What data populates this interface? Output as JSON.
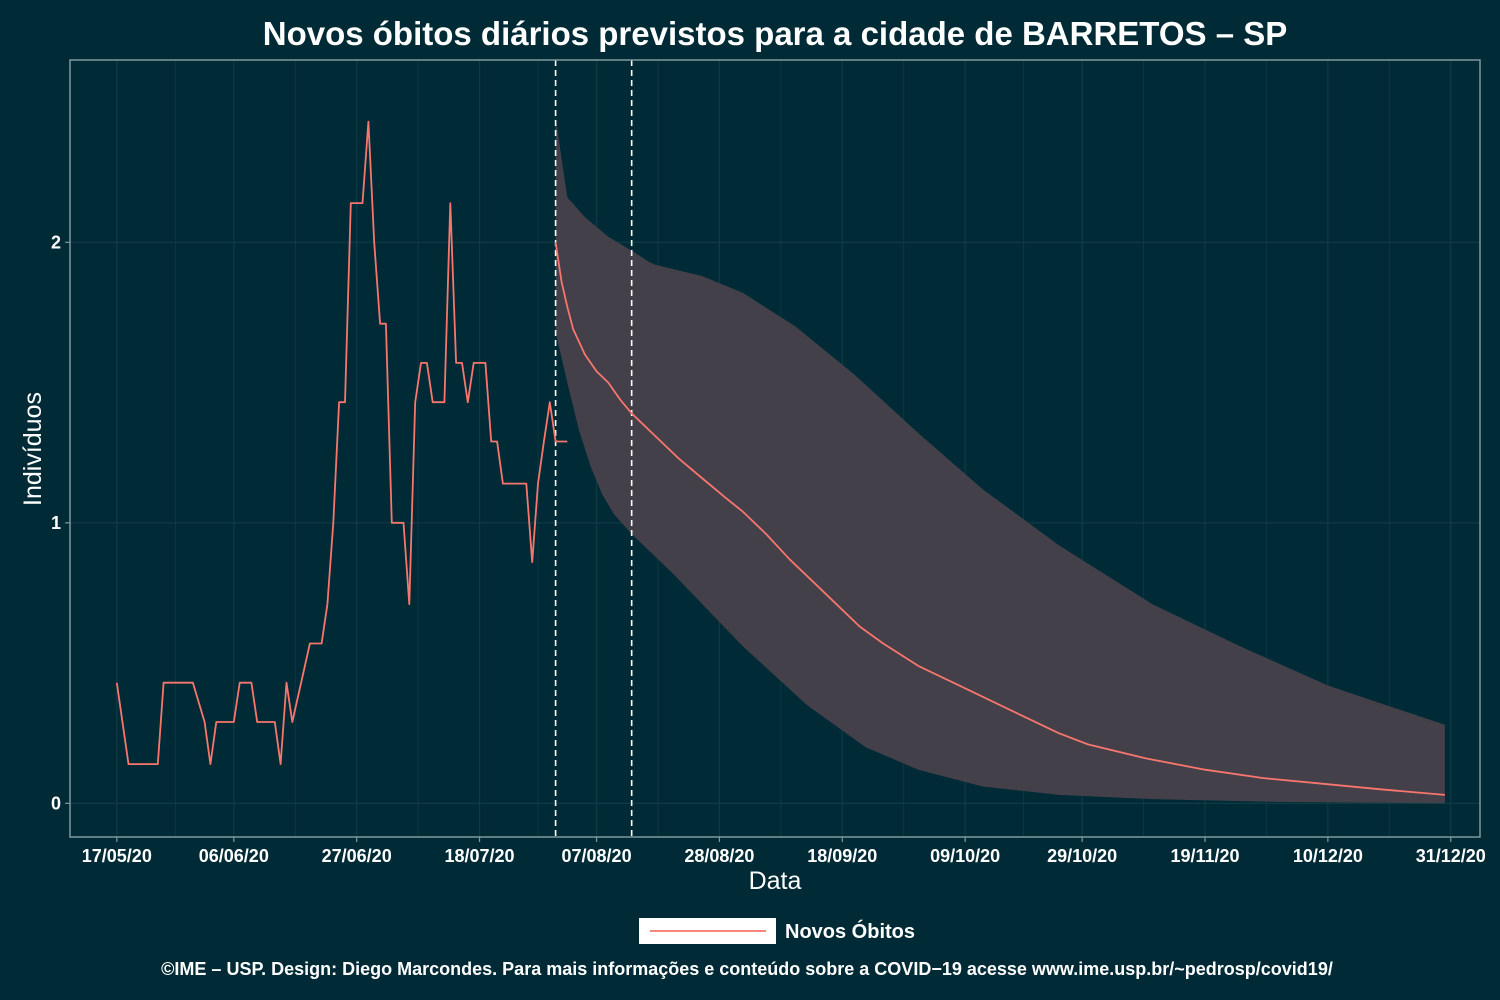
{
  "chart_data": {
    "type": "line",
    "title": "Novos óbitos diários previstos para a cidade de BARRETOS – SP",
    "xlabel": "Data",
    "ylabel": "Indivíduos",
    "x_range": [
      "2020-05-09",
      "2021-01-05"
    ],
    "ylim": [
      -0.12,
      2.65
    ],
    "x_ticks": [
      {
        "date": "2020-05-17",
        "label": "17/05/20"
      },
      {
        "date": "2020-06-06",
        "label": "06/06/20"
      },
      {
        "date": "2020-06-27",
        "label": "27/06/20"
      },
      {
        "date": "2020-07-18",
        "label": "18/07/20"
      },
      {
        "date": "2020-08-07",
        "label": "07/08/20"
      },
      {
        "date": "2020-08-28",
        "label": "28/08/20"
      },
      {
        "date": "2020-09-18",
        "label": "18/09/20"
      },
      {
        "date": "2020-10-09",
        "label": "09/10/20"
      },
      {
        "date": "2020-10-29",
        "label": "29/10/20"
      },
      {
        "date": "2020-11-19",
        "label": "19/11/20"
      },
      {
        "date": "2020-12-10",
        "label": "10/12/20"
      },
      {
        "date": "2020-12-31",
        "label": "31/12/20"
      }
    ],
    "y_ticks": [
      {
        "value": 0,
        "label": "0"
      },
      {
        "value": 1,
        "label": "1"
      },
      {
        "value": 2,
        "label": "2"
      }
    ],
    "vlines": [
      "2020-07-31",
      "2020-08-13"
    ],
    "grid": true,
    "legend_position": "bottom",
    "colors": {
      "background": "#002b36",
      "line": "#f8766d",
      "ribbon": "#43404a",
      "grid": "#0e3c46",
      "panel_border": "#7e9a9e",
      "legend_key": "#ffffff"
    },
    "series": [
      {
        "name": "Novos Óbitos",
        "kind": "observed",
        "points": [
          [
            "2020-05-17",
            0.43
          ],
          [
            "2020-05-19",
            0.14
          ],
          [
            "2020-05-24",
            0.14
          ],
          [
            "2020-05-25",
            0.43
          ],
          [
            "2020-05-30",
            0.43
          ],
          [
            "2020-06-01",
            0.29
          ],
          [
            "2020-06-02",
            0.14
          ],
          [
            "2020-06-03",
            0.29
          ],
          [
            "2020-06-06",
            0.29
          ],
          [
            "2020-06-07",
            0.43
          ],
          [
            "2020-06-09",
            0.43
          ],
          [
            "2020-06-10",
            0.29
          ],
          [
            "2020-06-13",
            0.29
          ],
          [
            "2020-06-14",
            0.14
          ],
          [
            "2020-06-15",
            0.43
          ],
          [
            "2020-06-16",
            0.29
          ],
          [
            "2020-06-19",
            0.57
          ],
          [
            "2020-06-21",
            0.57
          ],
          [
            "2020-06-22",
            0.71
          ],
          [
            "2020-06-23",
            1.0
          ],
          [
            "2020-06-24",
            1.43
          ],
          [
            "2020-06-25",
            1.43
          ],
          [
            "2020-06-26",
            2.14
          ],
          [
            "2020-06-28",
            2.14
          ],
          [
            "2020-06-29",
            2.43
          ],
          [
            "2020-06-30",
            2.0
          ],
          [
            "2020-07-01",
            1.71
          ],
          [
            "2020-07-02",
            1.71
          ],
          [
            "2020-07-03",
            1.0
          ],
          [
            "2020-07-05",
            1.0
          ],
          [
            "2020-07-06",
            0.71
          ],
          [
            "2020-07-07",
            1.43
          ],
          [
            "2020-07-08",
            1.57
          ],
          [
            "2020-07-09",
            1.57
          ],
          [
            "2020-07-10",
            1.43
          ],
          [
            "2020-07-12",
            1.43
          ],
          [
            "2020-07-13",
            2.14
          ],
          [
            "2020-07-14",
            1.57
          ],
          [
            "2020-07-15",
            1.57
          ],
          [
            "2020-07-16",
            1.43
          ],
          [
            "2020-07-17",
            1.57
          ],
          [
            "2020-07-19",
            1.57
          ],
          [
            "2020-07-20",
            1.29
          ],
          [
            "2020-07-21",
            1.29
          ],
          [
            "2020-07-22",
            1.14
          ],
          [
            "2020-07-26",
            1.14
          ],
          [
            "2020-07-27",
            0.86
          ],
          [
            "2020-07-28",
            1.14
          ],
          [
            "2020-07-29",
            1.29
          ],
          [
            "2020-07-30",
            1.43
          ],
          [
            "2020-07-31",
            1.29
          ],
          [
            "2020-08-02",
            1.29
          ]
        ]
      },
      {
        "name": "Novos Óbitos",
        "kind": "predicted",
        "points": [
          [
            "2020-07-31",
            2.0
          ],
          [
            "2020-08-01",
            1.86
          ],
          [
            "2020-08-02",
            1.77
          ],
          [
            "2020-08-03",
            1.69
          ],
          [
            "2020-08-05",
            1.6
          ],
          [
            "2020-08-07",
            1.54
          ],
          [
            "2020-08-09",
            1.5
          ],
          [
            "2020-08-11",
            1.44
          ],
          [
            "2020-08-13",
            1.39
          ],
          [
            "2020-08-17",
            1.31
          ],
          [
            "2020-08-21",
            1.23
          ],
          [
            "2020-08-25",
            1.16
          ],
          [
            "2020-08-29",
            1.09
          ],
          [
            "2020-09-01",
            1.04
          ],
          [
            "2020-09-05",
            0.96
          ],
          [
            "2020-09-09",
            0.87
          ],
          [
            "2020-09-13",
            0.79
          ],
          [
            "2020-09-17",
            0.71
          ],
          [
            "2020-09-21",
            0.63
          ],
          [
            "2020-09-25",
            0.57
          ],
          [
            "2020-10-01",
            0.49
          ],
          [
            "2020-10-07",
            0.43
          ],
          [
            "2020-10-13",
            0.37
          ],
          [
            "2020-10-19",
            0.31
          ],
          [
            "2020-10-25",
            0.25
          ],
          [
            "2020-10-30",
            0.21
          ],
          [
            "2020-11-09",
            0.16
          ],
          [
            "2020-11-19",
            0.12
          ],
          [
            "2020-11-29",
            0.09
          ],
          [
            "2020-12-09",
            0.07
          ],
          [
            "2020-12-19",
            0.05
          ],
          [
            "2020-12-30",
            0.03
          ]
        ]
      }
    ],
    "band": {
      "upper": [
        [
          "2020-07-31",
          2.45
        ],
        [
          "2020-08-01",
          2.3
        ],
        [
          "2020-08-02",
          2.16
        ],
        [
          "2020-08-05",
          2.09
        ],
        [
          "2020-08-09",
          2.02
        ],
        [
          "2020-08-13",
          1.97
        ],
        [
          "2020-08-16",
          1.93
        ],
        [
          "2020-08-17",
          1.92
        ],
        [
          "2020-08-25",
          1.88
        ],
        [
          "2020-09-01",
          1.82
        ],
        [
          "2020-09-10",
          1.7
        ],
        [
          "2020-09-20",
          1.53
        ],
        [
          "2020-10-01",
          1.32
        ],
        [
          "2020-10-12",
          1.12
        ],
        [
          "2020-10-25",
          0.92
        ],
        [
          "2020-11-10",
          0.71
        ],
        [
          "2020-11-25",
          0.56
        ],
        [
          "2020-12-10",
          0.42
        ],
        [
          "2020-12-20",
          0.35
        ],
        [
          "2020-12-30",
          0.28
        ]
      ],
      "lower": [
        [
          "2020-07-31",
          1.68
        ],
        [
          "2020-08-02",
          1.5
        ],
        [
          "2020-08-04",
          1.33
        ],
        [
          "2020-08-06",
          1.2
        ],
        [
          "2020-08-08",
          1.1
        ],
        [
          "2020-08-10",
          1.03
        ],
        [
          "2020-08-13",
          0.96
        ],
        [
          "2020-08-20",
          0.82
        ],
        [
          "2020-09-01",
          0.56
        ],
        [
          "2020-09-12",
          0.35
        ],
        [
          "2020-09-22",
          0.2
        ],
        [
          "2020-10-01",
          0.12
        ],
        [
          "2020-10-12",
          0.06
        ],
        [
          "2020-10-25",
          0.03
        ],
        [
          "2020-11-10",
          0.015
        ],
        [
          "2020-12-01",
          0.005
        ],
        [
          "2020-12-30",
          0.0
        ]
      ]
    }
  },
  "legend": {
    "label": "Novos Óbitos"
  },
  "caption": "©IME – USP. Design: Diego Marcondes. Para mais informações e conteúdo sobre a COVID−19 acesse www.ime.usp.br/~pedrosp/covid19/"
}
